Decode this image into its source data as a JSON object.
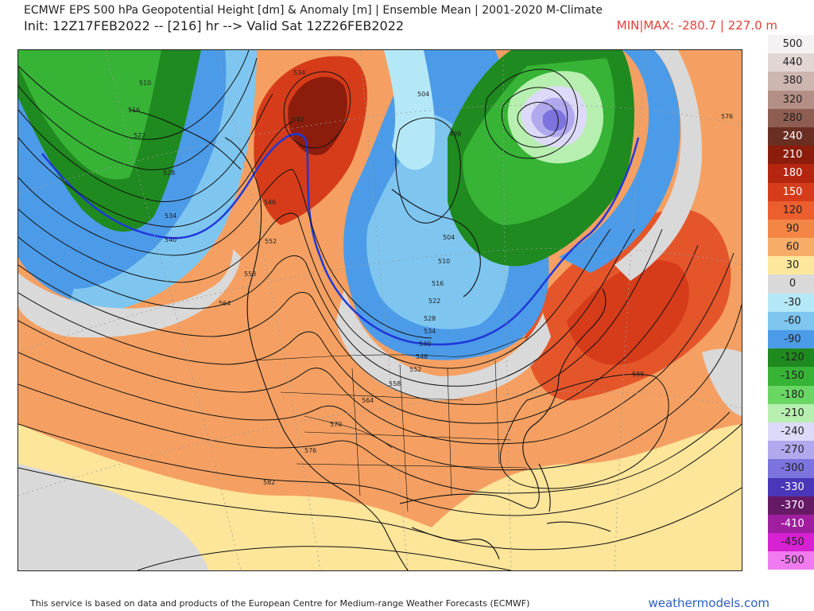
{
  "header": {
    "title_line1": "ECMWF EPS 500 hPa Geopotential Height [dm] & Anomaly [m] | Ensemble Mean | 2001-2020 M-Climate",
    "title_line2": "Init: 12Z17FEB2022 -- [216] hr --> Valid Sat 12Z26FEB2022",
    "minmax": "MIN|MAX: -280.7 | 227.0 m"
  },
  "map": {
    "contour_labels": [
      "510",
      "516",
      "522",
      "528",
      "534",
      "540",
      "534",
      "540",
      "546",
      "552",
      "558",
      "564",
      "576",
      "504",
      "498",
      "504",
      "510",
      "516",
      "522",
      "528",
      "534",
      "540",
      "546",
      "552",
      "558",
      "564",
      "570",
      "576",
      "582",
      "588"
    ]
  },
  "legend": {
    "items": [
      {
        "label": "500",
        "color": "#f4f2f2"
      },
      {
        "label": "440",
        "color": "#e2d6d4"
      },
      {
        "label": "380",
        "color": "#cdb5b0"
      },
      {
        "label": "320",
        "color": "#b48f86"
      },
      {
        "label": "280",
        "color": "#8f5e52"
      },
      {
        "label": "240",
        "color": "#6b2e22"
      },
      {
        "label": "210",
        "color": "#8c1d0c"
      },
      {
        "label": "180",
        "color": "#b52510"
      },
      {
        "label": "150",
        "color": "#d63c1a"
      },
      {
        "label": "120",
        "color": "#ec5e2e"
      },
      {
        "label": "90",
        "color": "#f38645"
      },
      {
        "label": "60",
        "color": "#f7ad67"
      },
      {
        "label": "30",
        "color": "#fde79c"
      },
      {
        "label": "0",
        "color": "#d9d9d9"
      },
      {
        "label": "-30",
        "color": "#b5e8f7"
      },
      {
        "label": "-60",
        "color": "#7ec6f0"
      },
      {
        "label": "-90",
        "color": "#4c9be8"
      },
      {
        "label": "-120",
        "color": "#1f8a1f"
      },
      {
        "label": "-150",
        "color": "#37b336"
      },
      {
        "label": "-180",
        "color": "#6ad664"
      },
      {
        "label": "-210",
        "color": "#b7efb0"
      },
      {
        "label": "-240",
        "color": "#dcdaf8"
      },
      {
        "label": "-270",
        "color": "#b0a9ee"
      },
      {
        "label": "-300",
        "color": "#7d73de"
      },
      {
        "label": "-330",
        "color": "#4a36b9"
      },
      {
        "label": "-370",
        "color": "#661a66"
      },
      {
        "label": "-410",
        "color": "#a01ea0"
      },
      {
        "label": "-450",
        "color": "#d622d2"
      },
      {
        "label": "-500",
        "color": "#f07af0"
      }
    ]
  },
  "footer": {
    "attribution": "This service is based on data and products of the European Centre for Medium-range Weather Forecasts (ECMWF)",
    "site": "weathermodels.com"
  }
}
